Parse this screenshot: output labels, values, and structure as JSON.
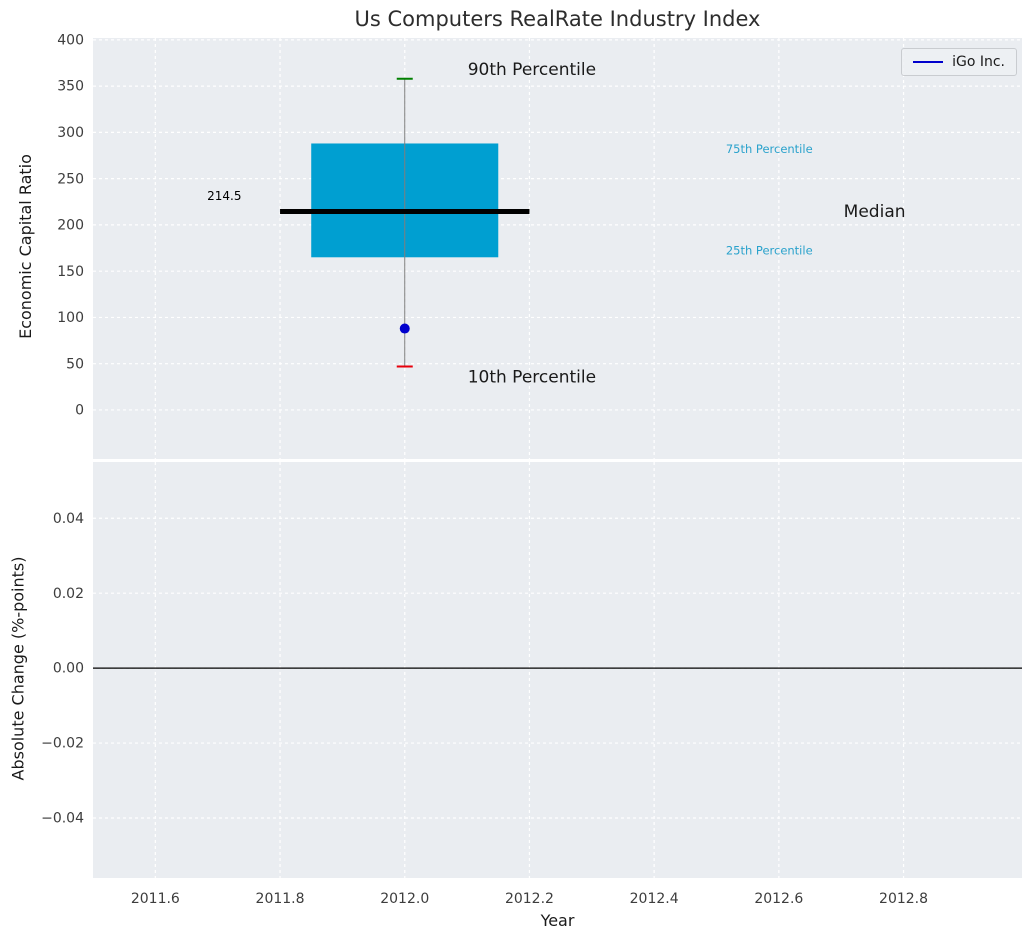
{
  "title": "Us Computers RealRate Industry Index",
  "chart_data": {
    "type": "box",
    "xlabel": "Year",
    "x": 2012,
    "xlim": [
      2011.5,
      2012.99
    ],
    "xticks": [
      {
        "v": 2011.6,
        "label": "2011.6"
      },
      {
        "v": 2011.8,
        "label": "2011.8"
      },
      {
        "v": 2012.0,
        "label": "2012.0"
      },
      {
        "v": 2012.2,
        "label": "2012.2"
      },
      {
        "v": 2012.4,
        "label": "2012.4"
      },
      {
        "v": 2012.6,
        "label": "2012.6"
      },
      {
        "v": 2012.8,
        "label": "2012.8"
      }
    ],
    "grid": true,
    "legend": {
      "label": "iGo Inc.",
      "line_color": "#0000cc",
      "position": "upper right"
    },
    "top_panel": {
      "ylabel": "Economic Capital Ratio",
      "ylim": [
        -53,
        402
      ],
      "yticks": [
        {
          "v": 0,
          "label": "0"
        },
        {
          "v": 50,
          "label": "50"
        },
        {
          "v": 100,
          "label": "100"
        },
        {
          "v": 150,
          "label": "150"
        },
        {
          "v": 200,
          "label": "200"
        },
        {
          "v": 250,
          "label": "250"
        },
        {
          "v": 300,
          "label": "300"
        },
        {
          "v": 350,
          "label": "350"
        },
        {
          "v": 400,
          "label": "400"
        }
      ],
      "box": {
        "p10": 47,
        "p25": 165,
        "median": 214.5,
        "p75": 288,
        "p90": 358,
        "box_x": [
          2011.85,
          2012.15
        ],
        "median_x": [
          2011.8,
          2012.2
        ],
        "box_color": "#009fd1",
        "median_color": "#000000",
        "p90_cap_color": "#008000",
        "p10_cap_color": "#e8000b",
        "whisker_color": "#7f7f7f"
      },
      "company_point": {
        "label": "iGo Inc.",
        "value": 88,
        "color": "#0000cd"
      },
      "annotations": [
        {
          "id": "90th-percentile",
          "text": "90th Percentile",
          "x": 2012.101,
          "y": 368,
          "size": 17,
          "color": "#1a1a1a"
        },
        {
          "id": "10th-percentile",
          "text": "10th Percentile",
          "x": 2012.101,
          "y": 36,
          "size": 17,
          "color": "#1a1a1a"
        },
        {
          "id": "75th-percentile",
          "text": "75th Percentile",
          "x": 2012.515,
          "y": 282,
          "size": 11.5,
          "color": "#2aa2cc"
        },
        {
          "id": "25th-percentile",
          "text": "25th Percentile",
          "x": 2012.515,
          "y": 172,
          "size": 11.5,
          "color": "#2aa2cc"
        },
        {
          "id": "median-label",
          "text": "Median",
          "x": 2012.704,
          "y": 214.5,
          "size": 17,
          "color": "#1a1a1a"
        },
        {
          "id": "median-value",
          "text": "214.5",
          "x": 2011.683,
          "y": 231,
          "size": 12,
          "color": "#000000"
        }
      ]
    },
    "bottom_panel": {
      "ylabel": "Absolute Change (%-points)",
      "ylim": [
        -0.056,
        0.055
      ],
      "yticks": [
        {
          "v": 0.04,
          "label": "0.04"
        },
        {
          "v": 0.02,
          "label": "0.02"
        },
        {
          "v": 0.0,
          "label": "0.00"
        },
        {
          "v": -0.02,
          "label": "−0.02"
        },
        {
          "v": -0.04,
          "label": "−0.04"
        }
      ],
      "zero_line": true,
      "zero_line_color": "#000000"
    }
  }
}
